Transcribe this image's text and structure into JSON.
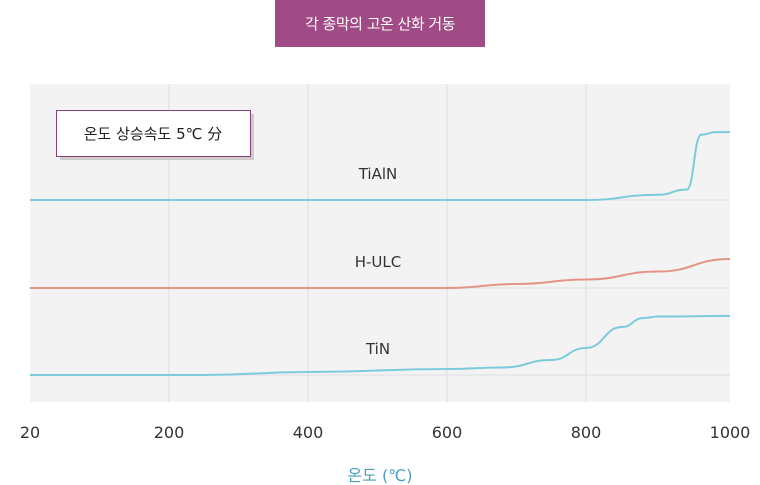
{
  "chart_data": {
    "type": "line",
    "title": "각 종막의 고온 산화 거동",
    "note": "온도 상승속도 5℃ 分",
    "xlabel": "온도 (℃)",
    "ylabel": "",
    "xlim": [
      20,
      1000
    ],
    "x_ticks": [
      "20",
      "200",
      "400",
      "600",
      "800",
      "1000"
    ],
    "grid": true,
    "series": [
      {
        "name": "TiAlN",
        "color": "#7ccbdc",
        "x": [
          20,
          800,
          900,
          940,
          960,
          980,
          1000
        ],
        "y": [
          0,
          0,
          0.06,
          0.12,
          0.75,
          0.78,
          0.78
        ]
      },
      {
        "name": "H-ULC",
        "color": "#e29585",
        "x": [
          20,
          600,
          700,
          800,
          900,
          1000
        ],
        "y": [
          0,
          0,
          0.08,
          0.17,
          0.33,
          0.58
        ]
      },
      {
        "name": "TiN",
        "color": "#7ccbdc",
        "x": [
          20,
          250,
          400,
          600,
          680,
          750,
          800,
          850,
          880,
          900,
          1000
        ],
        "y": [
          0,
          0,
          0.1,
          0.2,
          0.25,
          0.5,
          0.9,
          1.6,
          1.9,
          1.95,
          1.97
        ]
      }
    ]
  }
}
